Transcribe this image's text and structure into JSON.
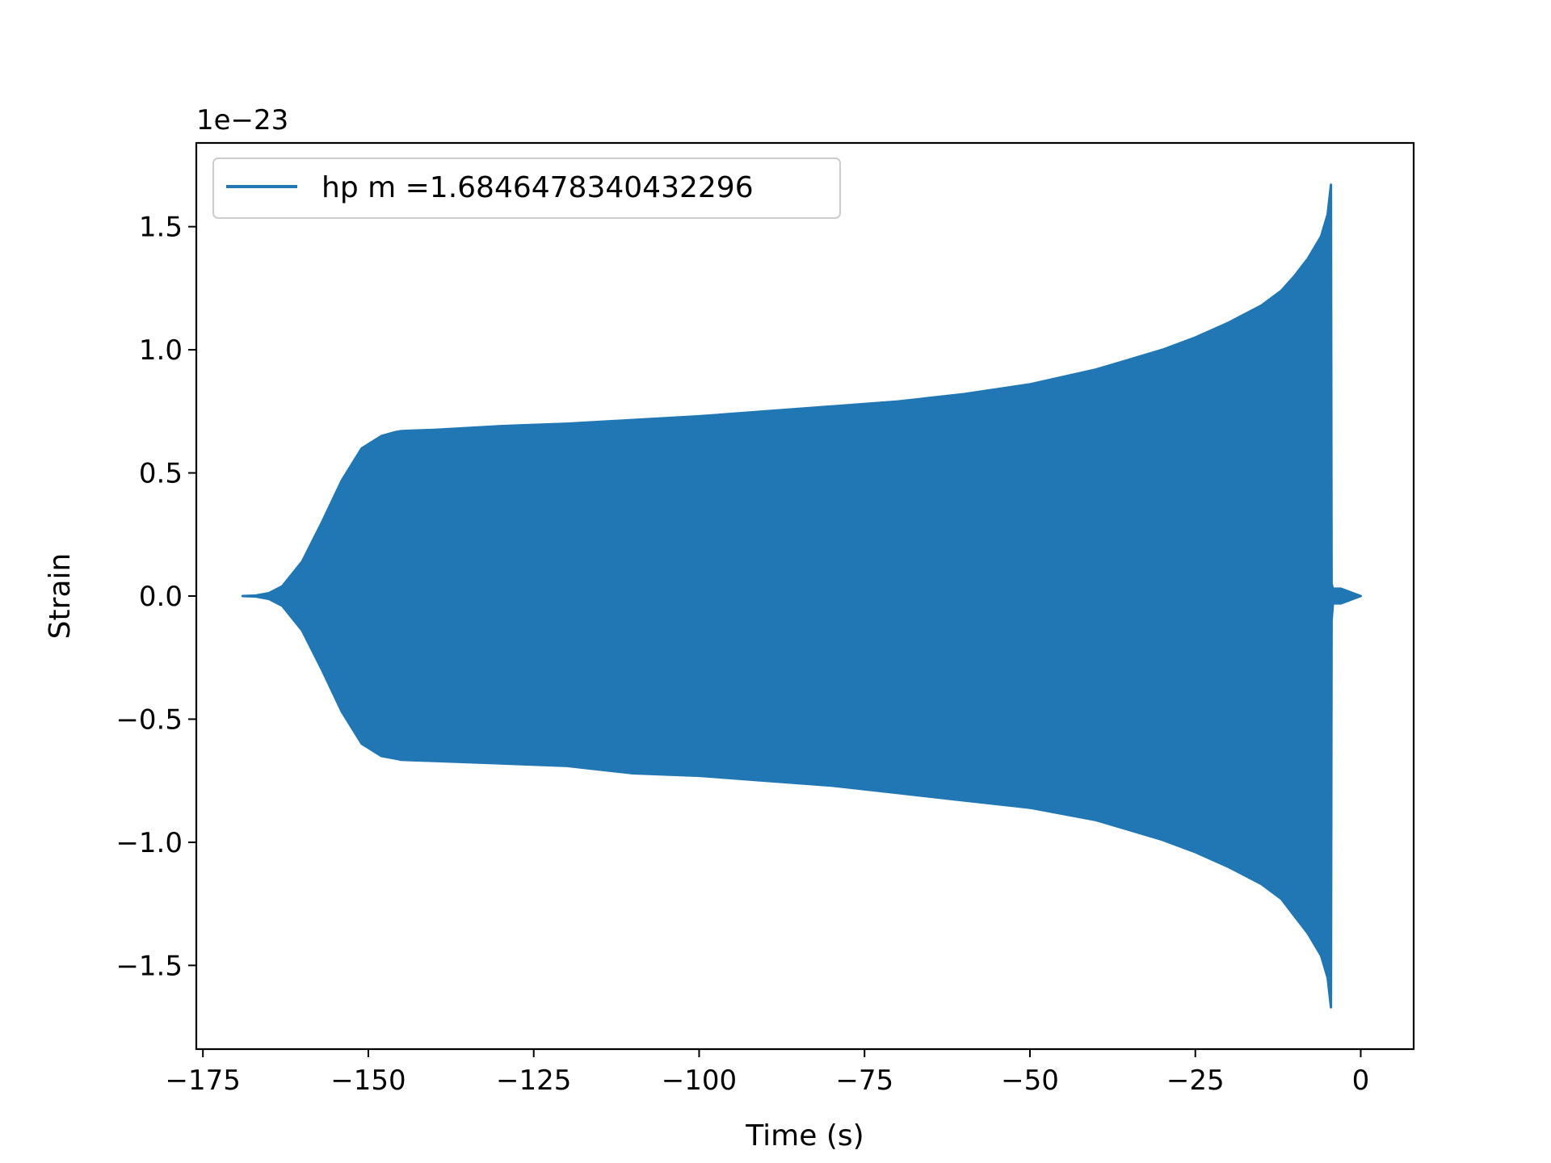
{
  "chart_data": {
    "type": "line",
    "title": "",
    "xlabel": "Time (s)",
    "ylabel": "Strain",
    "y_scale_label": "1e−23",
    "xlim": [
      -176,
      8
    ],
    "ylim": [
      -1.84,
      1.84
    ],
    "x_ticks": [
      -175,
      -150,
      -125,
      -100,
      -75,
      -50,
      -25,
      0
    ],
    "x_tick_labels": [
      "−175",
      "−150",
      "−125",
      "−100",
      "−75",
      "−50",
      "−25",
      "0"
    ],
    "y_ticks": [
      -1.5,
      -1.0,
      -0.5,
      0.0,
      0.5,
      1.0,
      1.5
    ],
    "y_tick_labels": [
      "−1.5",
      "−1.0",
      "−0.5",
      "0.0",
      "0.5",
      "1.0",
      "1.5"
    ],
    "grid": false,
    "legend_position": "upper-left",
    "color": "#2177b4",
    "series": [
      {
        "name": "hp m =1.6846478340432296",
        "color": "#2177b4",
        "x": [
          -169,
          -167,
          -165,
          -163,
          -160,
          -157,
          -154,
          -151,
          -148,
          -146,
          -145,
          -140,
          -130,
          -120,
          -110,
          -100,
          -90,
          -80,
          -70,
          -60,
          -50,
          -40,
          -30,
          -25,
          -20,
          -15,
          -12,
          -10,
          -8,
          -6,
          -5,
          -4.5,
          -4.4,
          -4.2,
          -3,
          -2,
          -1,
          0
        ],
        "upper": [
          0.0,
          0.002,
          0.012,
          0.04,
          0.14,
          0.3,
          0.47,
          0.6,
          0.65,
          0.665,
          0.67,
          0.675,
          0.69,
          0.7,
          0.715,
          0.73,
          0.75,
          0.77,
          0.79,
          0.82,
          0.86,
          0.92,
          1.0,
          1.05,
          1.11,
          1.18,
          1.24,
          1.3,
          1.37,
          1.46,
          1.55,
          1.67,
          0.05,
          0.03,
          0.03,
          0.02,
          0.01,
          0.0
        ],
        "lower": [
          0.0,
          -0.002,
          -0.012,
          -0.04,
          -0.14,
          -0.3,
          -0.47,
          -0.6,
          -0.65,
          -0.66,
          -0.665,
          -0.67,
          -0.68,
          -0.69,
          -0.72,
          -0.73,
          -0.75,
          -0.77,
          -0.8,
          -0.83,
          -0.86,
          -0.91,
          -0.99,
          -1.04,
          -1.1,
          -1.17,
          -1.23,
          -1.3,
          -1.37,
          -1.46,
          -1.55,
          -1.67,
          -0.1,
          -0.03,
          -0.03,
          -0.02,
          -0.01,
          0.0
        ]
      }
    ]
  }
}
